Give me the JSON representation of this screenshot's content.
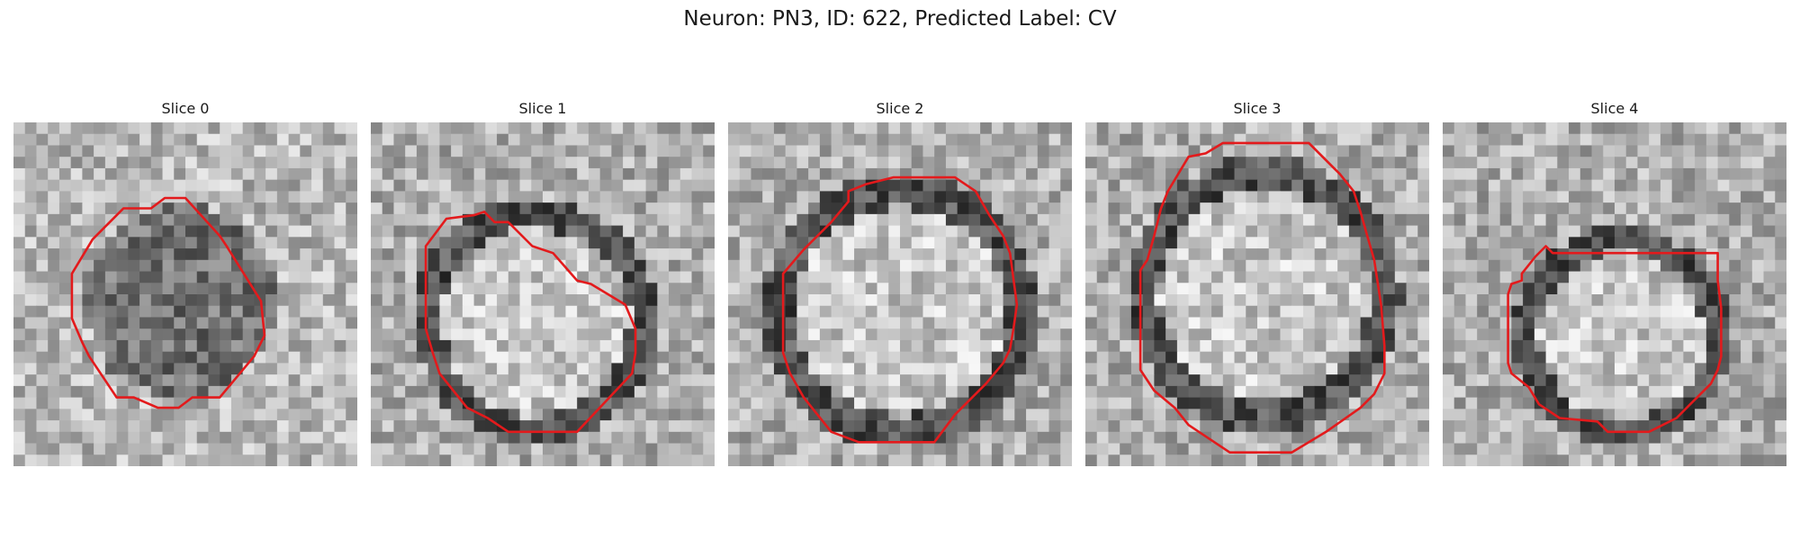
{
  "figure": {
    "title": "Neuron: PN3, ID: 622, Predicted Label: CV"
  },
  "panels": [
    {
      "title": "Slice 0",
      "image": "grayscale-em-patch",
      "contour_color": "#e31a1c",
      "contour": [
        [
          0.44,
          0.22
        ],
        [
          0.5,
          0.22
        ],
        [
          0.6,
          0.33
        ],
        [
          0.62,
          0.36
        ],
        [
          0.72,
          0.52
        ],
        [
          0.73,
          0.62
        ],
        [
          0.7,
          0.68
        ],
        [
          0.6,
          0.8
        ],
        [
          0.52,
          0.8
        ],
        [
          0.48,
          0.83
        ],
        [
          0.42,
          0.83
        ],
        [
          0.35,
          0.8
        ],
        [
          0.3,
          0.8
        ],
        [
          0.22,
          0.68
        ],
        [
          0.2,
          0.64
        ],
        [
          0.17,
          0.57
        ],
        [
          0.17,
          0.44
        ],
        [
          0.23,
          0.34
        ],
        [
          0.32,
          0.25
        ],
        [
          0.4,
          0.25
        ]
      ]
    },
    {
      "title": "Slice 1",
      "image": "grayscale-em-patch",
      "contour_color": "#e31a1c",
      "contour": [
        [
          0.3,
          0.27
        ],
        [
          0.33,
          0.26
        ],
        [
          0.36,
          0.29
        ],
        [
          0.4,
          0.29
        ],
        [
          0.47,
          0.36
        ],
        [
          0.53,
          0.38
        ],
        [
          0.6,
          0.46
        ],
        [
          0.64,
          0.47
        ],
        [
          0.74,
          0.53
        ],
        [
          0.77,
          0.6
        ],
        [
          0.77,
          0.67
        ],
        [
          0.76,
          0.73
        ],
        [
          0.6,
          0.9
        ],
        [
          0.4,
          0.9
        ],
        [
          0.34,
          0.86
        ],
        [
          0.28,
          0.83
        ],
        [
          0.2,
          0.73
        ],
        [
          0.18,
          0.67
        ],
        [
          0.16,
          0.6
        ],
        [
          0.16,
          0.36
        ],
        [
          0.22,
          0.28
        ]
      ]
    },
    {
      "title": "Slice 2",
      "image": "grayscale-em-patch",
      "contour_color": "#e31a1c",
      "contour": [
        [
          0.48,
          0.16
        ],
        [
          0.66,
          0.16
        ],
        [
          0.72,
          0.2
        ],
        [
          0.76,
          0.27
        ],
        [
          0.8,
          0.33
        ],
        [
          0.82,
          0.38
        ],
        [
          0.84,
          0.53
        ],
        [
          0.83,
          0.6
        ],
        [
          0.82,
          0.66
        ],
        [
          0.8,
          0.7
        ],
        [
          0.75,
          0.76
        ],
        [
          0.66,
          0.85
        ],
        [
          0.6,
          0.93
        ],
        [
          0.38,
          0.93
        ],
        [
          0.3,
          0.9
        ],
        [
          0.26,
          0.85
        ],
        [
          0.22,
          0.8
        ],
        [
          0.18,
          0.73
        ],
        [
          0.16,
          0.67
        ],
        [
          0.16,
          0.44
        ],
        [
          0.22,
          0.37
        ],
        [
          0.3,
          0.29
        ],
        [
          0.35,
          0.23
        ],
        [
          0.35,
          0.2
        ],
        [
          0.4,
          0.18
        ]
      ]
    },
    {
      "title": "Slice 3",
      "image": "grayscale-em-patch",
      "contour_color": "#e31a1c",
      "contour": [
        [
          0.4,
          0.06
        ],
        [
          0.65,
          0.06
        ],
        [
          0.72,
          0.13
        ],
        [
          0.74,
          0.15
        ],
        [
          0.78,
          0.2
        ],
        [
          0.8,
          0.26
        ],
        [
          0.82,
          0.33
        ],
        [
          0.84,
          0.4
        ],
        [
          0.86,
          0.53
        ],
        [
          0.87,
          0.65
        ],
        [
          0.87,
          0.73
        ],
        [
          0.84,
          0.79
        ],
        [
          0.8,
          0.83
        ],
        [
          0.7,
          0.9
        ],
        [
          0.6,
          0.96
        ],
        [
          0.42,
          0.96
        ],
        [
          0.36,
          0.92
        ],
        [
          0.3,
          0.88
        ],
        [
          0.26,
          0.83
        ],
        [
          0.2,
          0.78
        ],
        [
          0.16,
          0.72
        ],
        [
          0.16,
          0.43
        ],
        [
          0.18,
          0.4
        ],
        [
          0.2,
          0.33
        ],
        [
          0.22,
          0.25
        ],
        [
          0.24,
          0.2
        ],
        [
          0.3,
          0.1
        ],
        [
          0.35,
          0.09
        ]
      ]
    },
    {
      "title": "Slice 4",
      "image": "grayscale-em-patch",
      "contour_color": "#e31a1c",
      "contour": [
        [
          0.3,
          0.36
        ],
        [
          0.32,
          0.38
        ],
        [
          0.35,
          0.38
        ],
        [
          0.8,
          0.38
        ],
        [
          0.8,
          0.42
        ],
        [
          0.8,
          0.46
        ],
        [
          0.81,
          0.54
        ],
        [
          0.81,
          0.68
        ],
        [
          0.8,
          0.72
        ],
        [
          0.78,
          0.76
        ],
        [
          0.72,
          0.82
        ],
        [
          0.68,
          0.86
        ],
        [
          0.6,
          0.9
        ],
        [
          0.48,
          0.9
        ],
        [
          0.45,
          0.87
        ],
        [
          0.34,
          0.86
        ],
        [
          0.28,
          0.82
        ],
        [
          0.25,
          0.77
        ],
        [
          0.2,
          0.73
        ],
        [
          0.19,
          0.7
        ],
        [
          0.19,
          0.5
        ],
        [
          0.2,
          0.47
        ],
        [
          0.23,
          0.46
        ],
        [
          0.23,
          0.44
        ],
        [
          0.27,
          0.39
        ]
      ]
    }
  ]
}
